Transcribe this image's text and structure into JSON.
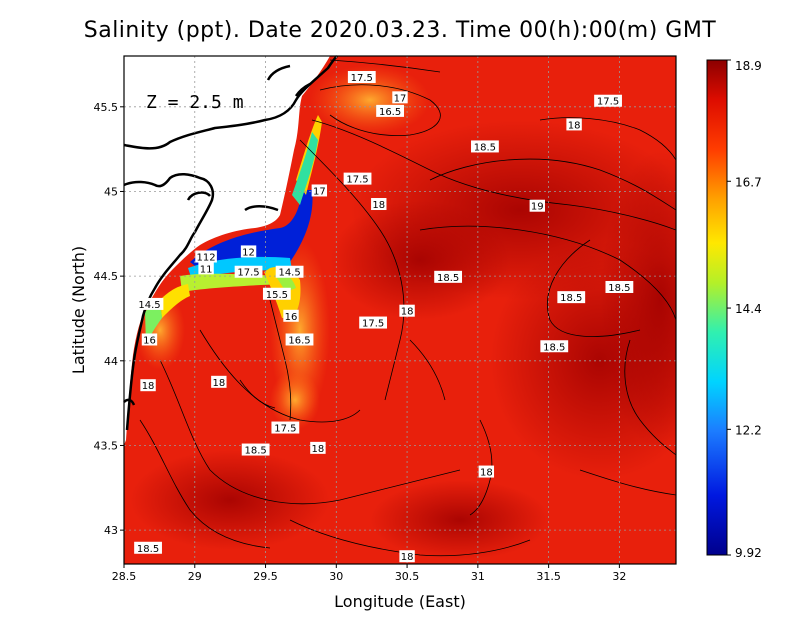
{
  "title": "Salinity (ppt). Date 2020.03.23. Time 00(h):00(m) GMT",
  "depth_label": "Z = 2.5 m",
  "colors": {
    "background": "#ffffff",
    "land": "#ffffff",
    "coast": "#000000",
    "grid": "#9a9a9a"
  },
  "chart_data": {
    "type": "heatmap",
    "xlabel": "Longitude (East)",
    "ylabel": "Latitude (North)",
    "xlim": [
      28.5,
      32.4
    ],
    "ylim": [
      42.8,
      45.8
    ],
    "x_ticks": [
      28.5,
      29,
      29.5,
      30,
      30.5,
      31,
      31.5,
      32
    ],
    "y_ticks": [
      43,
      43.5,
      44,
      44.5,
      45,
      45.5
    ],
    "grid": true,
    "colorbar": {
      "min": 9.92,
      "max": 18.9,
      "ticks": [
        9.92,
        12.2,
        14.4,
        16.7,
        18.9
      ],
      "placement": "right"
    },
    "contour_labels": [
      {
        "text": "17.5",
        "lon": 30.18,
        "lat": 45.67
      },
      {
        "text": "17",
        "lon": 30.45,
        "lat": 45.55
      },
      {
        "text": "16.5",
        "lon": 30.38,
        "lat": 45.47
      },
      {
        "text": "17.5",
        "lon": 31.92,
        "lat": 45.53
      },
      {
        "text": "18",
        "lon": 31.68,
        "lat": 45.39
      },
      {
        "text": "18.5",
        "lon": 31.05,
        "lat": 45.26
      },
      {
        "text": "17.5",
        "lon": 30.15,
        "lat": 45.07
      },
      {
        "text": "17",
        "lon": 29.88,
        "lat": 45.0
      },
      {
        "text": "18",
        "lon": 30.3,
        "lat": 44.92
      },
      {
        "text": "19",
        "lon": 31.42,
        "lat": 44.91
      },
      {
        "text": "112",
        "lon": 29.08,
        "lat": 44.61
      },
      {
        "text": "12",
        "lon": 29.38,
        "lat": 44.64
      },
      {
        "text": "11",
        "lon": 29.08,
        "lat": 44.54
      },
      {
        "text": "17.5",
        "lon": 29.38,
        "lat": 44.52
      },
      {
        "text": "14.5",
        "lon": 29.67,
        "lat": 44.52
      },
      {
        "text": "15.5",
        "lon": 29.58,
        "lat": 44.39
      },
      {
        "text": "14.5",
        "lon": 28.68,
        "lat": 44.33
      },
      {
        "text": "16",
        "lon": 29.68,
        "lat": 44.26
      },
      {
        "text": "18.5",
        "lon": 30.79,
        "lat": 44.49
      },
      {
        "text": "18.5",
        "lon": 31.66,
        "lat": 44.37
      },
      {
        "text": "18.5",
        "lon": 32.0,
        "lat": 44.43
      },
      {
        "text": "18",
        "lon": 30.5,
        "lat": 44.29
      },
      {
        "text": "17.5",
        "lon": 30.26,
        "lat": 44.22
      },
      {
        "text": "16",
        "lon": 28.68,
        "lat": 44.12
      },
      {
        "text": "16.5",
        "lon": 29.74,
        "lat": 44.12
      },
      {
        "text": "18.5",
        "lon": 31.54,
        "lat": 44.08
      },
      {
        "text": "18",
        "lon": 29.17,
        "lat": 43.87
      },
      {
        "text": "18",
        "lon": 28.67,
        "lat": 43.85
      },
      {
        "text": "17.5",
        "lon": 29.64,
        "lat": 43.6
      },
      {
        "text": "18.5",
        "lon": 29.43,
        "lat": 43.47
      },
      {
        "text": "18",
        "lon": 29.87,
        "lat": 43.48
      },
      {
        "text": "18",
        "lon": 31.06,
        "lat": 43.34
      },
      {
        "text": "18.5",
        "lon": 28.67,
        "lat": 42.89
      },
      {
        "text": "18",
        "lon": 30.5,
        "lat": 42.84
      }
    ]
  }
}
